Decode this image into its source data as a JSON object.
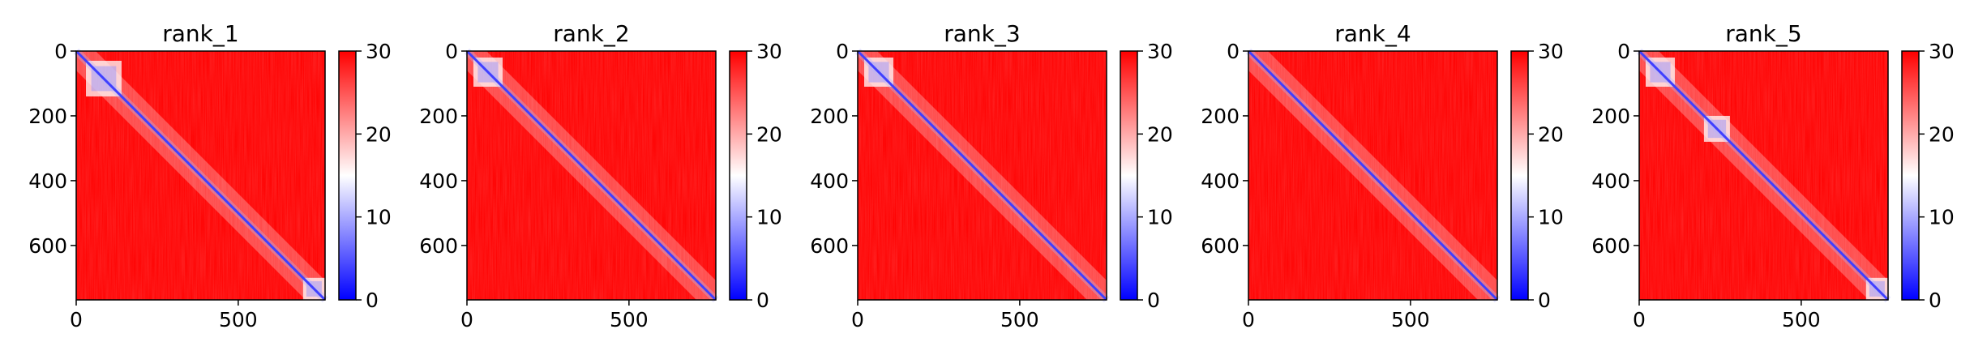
{
  "figure": {
    "background": "#ffffff"
  },
  "chart_data": [
    {
      "type": "heatmap",
      "title": "rank_1",
      "xlabel": "",
      "ylabel": "",
      "xlim": [
        0,
        768
      ],
      "ylim": [
        768,
        0
      ],
      "xticks": [
        "0",
        "500"
      ],
      "yticks": [
        "0",
        "200",
        "400",
        "600"
      ],
      "colorbar": {
        "min": 0,
        "max": 30,
        "ticks": [
          "0",
          "10",
          "20",
          "30"
        ],
        "colormap": [
          "#0000ff",
          "#ffffff",
          "#ff0000"
        ]
      },
      "description_values": {
        "diagonal": 0,
        "background": 30,
        "domain_blocks": [
          [
            30,
            140
          ],
          [
            700,
            768
          ]
        ]
      }
    },
    {
      "type": "heatmap",
      "title": "rank_2",
      "xlabel": "",
      "ylabel": "",
      "xlim": [
        0,
        768
      ],
      "ylim": [
        768,
        0
      ],
      "xticks": [
        "0",
        "500"
      ],
      "yticks": [
        "0",
        "200",
        "400",
        "600"
      ],
      "colorbar": {
        "min": 0,
        "max": 30,
        "ticks": [
          "0",
          "10",
          "20",
          "30"
        ],
        "colormap": [
          "#0000ff",
          "#ffffff",
          "#ff0000"
        ]
      },
      "description_values": {
        "diagonal": 0,
        "background": 30,
        "domain_blocks": [
          [
            20,
            110
          ]
        ]
      }
    },
    {
      "type": "heatmap",
      "title": "rank_3",
      "xlabel": "",
      "ylabel": "",
      "xlim": [
        0,
        768
      ],
      "ylim": [
        768,
        0
      ],
      "xticks": [
        "0",
        "500"
      ],
      "yticks": [
        "0",
        "200",
        "400",
        "600"
      ],
      "colorbar": {
        "min": 0,
        "max": 30,
        "ticks": [
          "0",
          "10",
          "20",
          "30"
        ],
        "colormap": [
          "#0000ff",
          "#ffffff",
          "#ff0000"
        ]
      },
      "description_values": {
        "diagonal": 0,
        "background": 30,
        "domain_blocks": [
          [
            20,
            110
          ]
        ]
      }
    },
    {
      "type": "heatmap",
      "title": "rank_4",
      "xlabel": "",
      "ylabel": "",
      "xlim": [
        0,
        768
      ],
      "ylim": [
        768,
        0
      ],
      "xticks": [
        "0",
        "500"
      ],
      "yticks": [
        "0",
        "200",
        "400",
        "600"
      ],
      "colorbar": {
        "min": 0,
        "max": 30,
        "ticks": [
          "0",
          "10",
          "20",
          "30"
        ],
        "colormap": [
          "#0000ff",
          "#ffffff",
          "#ff0000"
        ]
      },
      "description_values": {
        "diagonal": 0,
        "background": 30,
        "domain_blocks": []
      }
    },
    {
      "type": "heatmap",
      "title": "rank_5",
      "xlabel": "",
      "ylabel": "",
      "xlim": [
        0,
        768
      ],
      "ylim": [
        768,
        0
      ],
      "xticks": [
        "0",
        "500"
      ],
      "yticks": [
        "0",
        "200",
        "400",
        "600"
      ],
      "colorbar": {
        "min": 0,
        "max": 30,
        "ticks": [
          "0",
          "10",
          "20",
          "30"
        ],
        "colormap": [
          "#0000ff",
          "#ffffff",
          "#ff0000"
        ]
      },
      "description_values": {
        "diagonal": 0,
        "background": 30,
        "domain_blocks": [
          [
            20,
            110
          ],
          [
            200,
            280
          ],
          [
            700,
            768
          ]
        ]
      }
    }
  ]
}
